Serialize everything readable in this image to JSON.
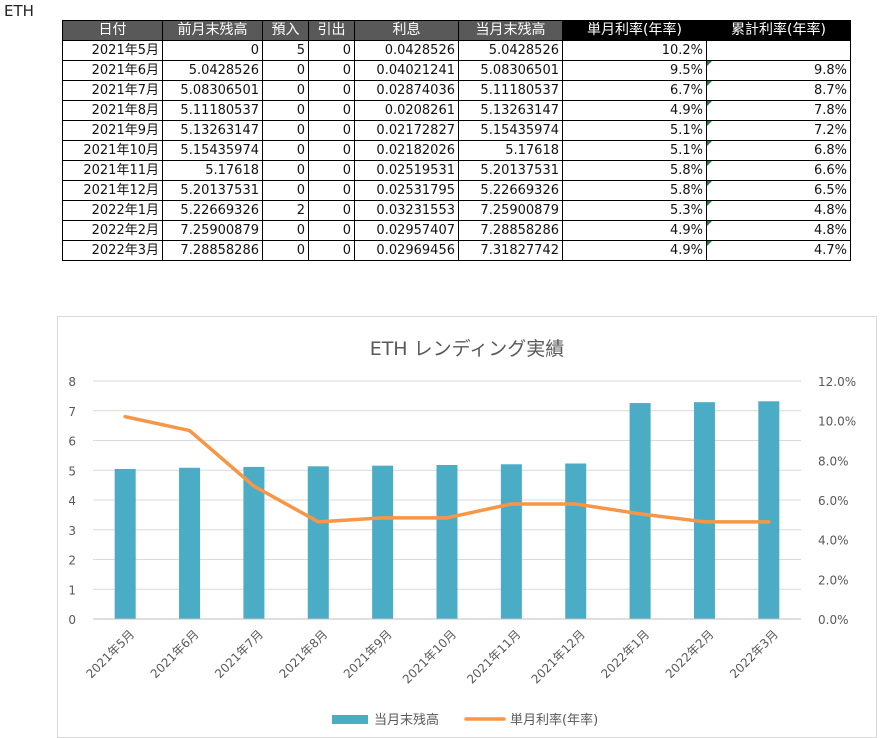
{
  "sheet": {
    "label": "ETH"
  },
  "table": {
    "headers": [
      "日付",
      "前月末残高",
      "預入",
      "引出",
      "利息",
      "当月末残高",
      "単月利率(年率)",
      "累計利率(年率)"
    ],
    "header_colors": [
      "#595959",
      "#595959",
      "#595959",
      "#595959",
      "#595959",
      "#595959",
      "#000000",
      "#000000"
    ],
    "rows": [
      [
        "2021年5月",
        "0",
        "5",
        "0",
        "0.0428526",
        "5.0428526",
        "10.2%",
        ""
      ],
      [
        "2021年6月",
        "5.0428526",
        "0",
        "0",
        "0.04021241",
        "5.08306501",
        "9.5%",
        "9.8%"
      ],
      [
        "2021年7月",
        "5.08306501",
        "0",
        "0",
        "0.02874036",
        "5.11180537",
        "6.7%",
        "8.7%"
      ],
      [
        "2021年8月",
        "5.11180537",
        "0",
        "0",
        "0.0208261",
        "5.13263147",
        "4.9%",
        "7.8%"
      ],
      [
        "2021年9月",
        "5.13263147",
        "0",
        "0",
        "0.02172827",
        "5.15435974",
        "5.1%",
        "7.2%"
      ],
      [
        "2021年10月",
        "5.15435974",
        "0",
        "0",
        "0.02182026",
        "5.17618",
        "5.1%",
        "6.8%"
      ],
      [
        "2021年11月",
        "5.17618",
        "0",
        "0",
        "0.02519531",
        "5.20137531",
        "5.8%",
        "6.6%"
      ],
      [
        "2021年12月",
        "5.20137531",
        "0",
        "0",
        "0.02531795",
        "5.22669326",
        "5.8%",
        "6.5%"
      ],
      [
        "2022年1月",
        "5.22669326",
        "2",
        "0",
        "0.03231553",
        "7.25900879",
        "5.3%",
        "4.8%"
      ],
      [
        "2022年2月",
        "7.25900879",
        "0",
        "0",
        "0.02957407",
        "7.28858286",
        "4.9%",
        "4.8%"
      ],
      [
        "2022年3月",
        "7.28858286",
        "0",
        "0",
        "0.02969456",
        "7.31827742",
        "4.9%",
        "4.7%"
      ]
    ]
  },
  "chart_data": {
    "type": "bar",
    "title": "ETH レンディング実績",
    "categories": [
      "2021年5月",
      "2021年6月",
      "2021年7月",
      "2021年8月",
      "2021年9月",
      "2021年10月",
      "2021年11月",
      "2021年12月",
      "2022年1月",
      "2022年2月",
      "2022年3月"
    ],
    "series": [
      {
        "name": "当月末残高",
        "type": "bar",
        "axis": "left",
        "color": "#4bacc6",
        "values": [
          5.0428526,
          5.08306501,
          5.11180537,
          5.13263147,
          5.15435974,
          5.17618,
          5.20137531,
          5.22669326,
          7.25900879,
          7.28858286,
          7.31827742
        ]
      },
      {
        "name": "単月利率(年率)",
        "type": "line",
        "axis": "right",
        "color": "#f79646",
        "values": [
          10.2,
          9.5,
          6.7,
          4.9,
          5.1,
          5.1,
          5.8,
          5.8,
          5.3,
          4.9,
          4.9
        ]
      }
    ],
    "y_left": {
      "min": 0,
      "max": 8,
      "ticks": [
        0,
        1,
        2,
        3,
        4,
        5,
        6,
        7,
        8
      ]
    },
    "y_right": {
      "min": 0,
      "max": 12,
      "ticks": [
        "0.0%",
        "2.0%",
        "4.0%",
        "6.0%",
        "8.0%",
        "10.0%",
        "12.0%"
      ]
    },
    "grid": true,
    "legend_position": "bottom"
  }
}
